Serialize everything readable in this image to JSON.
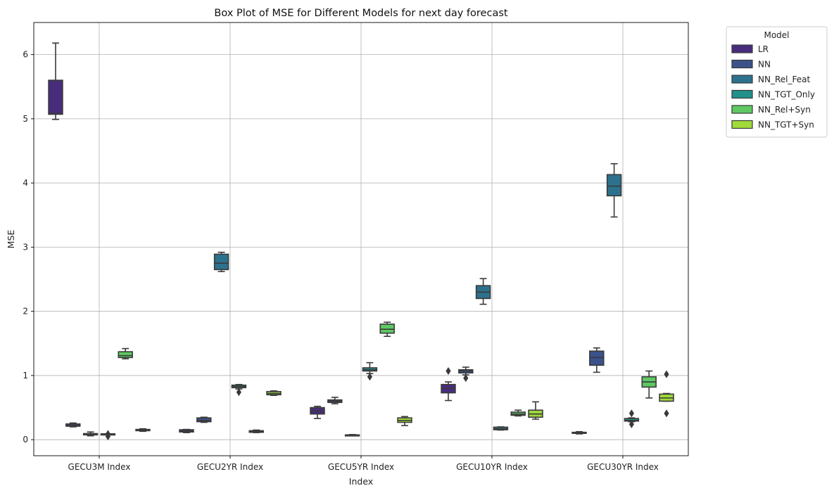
{
  "chart_data": {
    "type": "box",
    "title": "Box Plot of MSE for Different Models for next day forecast",
    "xlabel": "Index",
    "ylabel": "MSE",
    "categories": [
      "GECU3M Index",
      "GECU2YR Index",
      "GECU5YR Index",
      "GECU10YR Index",
      "GECU30YR Index"
    ],
    "ylim": [
      -0.25,
      6.5
    ],
    "yticks": [
      0,
      1,
      2,
      3,
      4,
      5,
      6
    ],
    "grid": true,
    "legend": {
      "title": "Model",
      "placement": "outside-top-right"
    },
    "series": [
      {
        "name": "LR",
        "color": "#472d7b",
        "boxes": [
          {
            "whislo": 4.99,
            "q1": 5.07,
            "med": 5.08,
            "q3": 5.6,
            "whishi": 6.18,
            "fliers": []
          },
          {
            "whislo": 0.11,
            "q1": 0.12,
            "med": 0.14,
            "q3": 0.155,
            "whishi": 0.16,
            "fliers": []
          },
          {
            "whislo": 0.33,
            "q1": 0.4,
            "med": 0.45,
            "q3": 0.5,
            "whishi": 0.52,
            "fliers": []
          },
          {
            "whislo": 0.61,
            "q1": 0.73,
            "med": 0.8,
            "q3": 0.86,
            "whishi": 0.9,
            "fliers": [
              1.07
            ]
          },
          {
            "whislo": 0.09,
            "q1": 0.1,
            "med": 0.105,
            "q3": 0.115,
            "whishi": 0.125,
            "fliers": []
          }
        ]
      },
      {
        "name": "NN",
        "color": "#3b528b",
        "boxes": [
          {
            "whislo": 0.2,
            "q1": 0.21,
            "med": 0.225,
            "q3": 0.245,
            "whishi": 0.26,
            "fliers": []
          },
          {
            "whislo": 0.27,
            "q1": 0.28,
            "med": 0.3,
            "q3": 0.34,
            "whishi": 0.35,
            "fliers": []
          },
          {
            "whislo": 0.56,
            "q1": 0.58,
            "med": 0.6,
            "q3": 0.62,
            "whishi": 0.66,
            "fliers": []
          },
          {
            "whislo": 1.01,
            "q1": 1.04,
            "med": 1.07,
            "q3": 1.09,
            "whishi": 1.13,
            "fliers": [
              0.96
            ]
          },
          {
            "whislo": 1.05,
            "q1": 1.16,
            "med": 1.28,
            "q3": 1.38,
            "whishi": 1.43,
            "fliers": []
          }
        ]
      },
      {
        "name": "NN_Rel_Feat",
        "color": "#2c728e",
        "boxes": [
          {
            "whislo": 0.06,
            "q1": 0.075,
            "med": 0.085,
            "q3": 0.095,
            "whishi": 0.12,
            "fliers": []
          },
          {
            "whislo": 2.62,
            "q1": 2.65,
            "med": 2.75,
            "q3": 2.89,
            "whishi": 2.92,
            "fliers": []
          },
          {
            "whislo": 0.06,
            "q1": 0.065,
            "med": 0.07,
            "q3": 0.075,
            "whishi": 0.08,
            "fliers": []
          },
          {
            "whislo": 2.11,
            "q1": 2.2,
            "med": 2.3,
            "q3": 2.4,
            "whishi": 2.51,
            "fliers": []
          },
          {
            "whislo": 3.47,
            "q1": 3.8,
            "med": 3.95,
            "q3": 4.13,
            "whishi": 4.3,
            "fliers": []
          }
        ]
      },
      {
        "name": "NN_TGT_Only",
        "color": "#21918c",
        "boxes": [
          {
            "whislo": 0.085,
            "q1": 0.085,
            "med": 0.09,
            "q3": 0.09,
            "whishi": 0.09,
            "fliers": [
              0.05,
              0.09
            ]
          },
          {
            "whislo": 0.79,
            "q1": 0.81,
            "med": 0.83,
            "q3": 0.85,
            "whishi": 0.86,
            "fliers": [
              0.74
            ]
          },
          {
            "whislo": 1.03,
            "q1": 1.07,
            "med": 1.09,
            "q3": 1.12,
            "whishi": 1.2,
            "fliers": [
              0.98
            ]
          },
          {
            "whislo": 0.15,
            "q1": 0.155,
            "med": 0.17,
            "q3": 0.195,
            "whishi": 0.2,
            "fliers": []
          },
          {
            "whislo": 0.28,
            "q1": 0.29,
            "med": 0.3,
            "q3": 0.33,
            "whishi": 0.34,
            "fliers": [
              0.24,
              0.41
            ]
          }
        ]
      },
      {
        "name": "NN_Rel+Syn",
        "color": "#5ec962",
        "boxes": [
          {
            "whislo": 1.26,
            "q1": 1.28,
            "med": 1.31,
            "q3": 1.37,
            "whishi": 1.42,
            "fliers": []
          },
          {
            "whislo": 0.11,
            "q1": 0.115,
            "med": 0.13,
            "q3": 0.14,
            "whishi": 0.15,
            "fliers": []
          },
          {
            "whislo": 1.61,
            "q1": 1.66,
            "med": 1.72,
            "q3": 1.8,
            "whishi": 1.83,
            "fliers": []
          },
          {
            "whislo": 0.37,
            "q1": 0.38,
            "med": 0.4,
            "q3": 0.43,
            "whishi": 0.46,
            "fliers": []
          },
          {
            "whislo": 0.65,
            "q1": 0.82,
            "med": 0.9,
            "q3": 0.98,
            "whishi": 1.07,
            "fliers": []
          }
        ]
      },
      {
        "name": "NN_TGT+Syn",
        "color": "#a0da39",
        "boxes": [
          {
            "whislo": 0.13,
            "q1": 0.14,
            "med": 0.15,
            "q3": 0.16,
            "whishi": 0.17,
            "fliers": []
          },
          {
            "whislo": 0.69,
            "q1": 0.7,
            "med": 0.72,
            "q3": 0.75,
            "whishi": 0.76,
            "fliers": []
          },
          {
            "whislo": 0.22,
            "q1": 0.27,
            "med": 0.3,
            "q3": 0.34,
            "whishi": 0.36,
            "fliers": []
          },
          {
            "whislo": 0.32,
            "q1": 0.35,
            "med": 0.4,
            "q3": 0.46,
            "whishi": 0.59,
            "fliers": []
          },
          {
            "whislo": 0.6,
            "q1": 0.6,
            "med": 0.65,
            "q3": 0.71,
            "whishi": 0.72,
            "fliers": [
              0.41,
              1.02
            ]
          }
        ]
      }
    ]
  }
}
